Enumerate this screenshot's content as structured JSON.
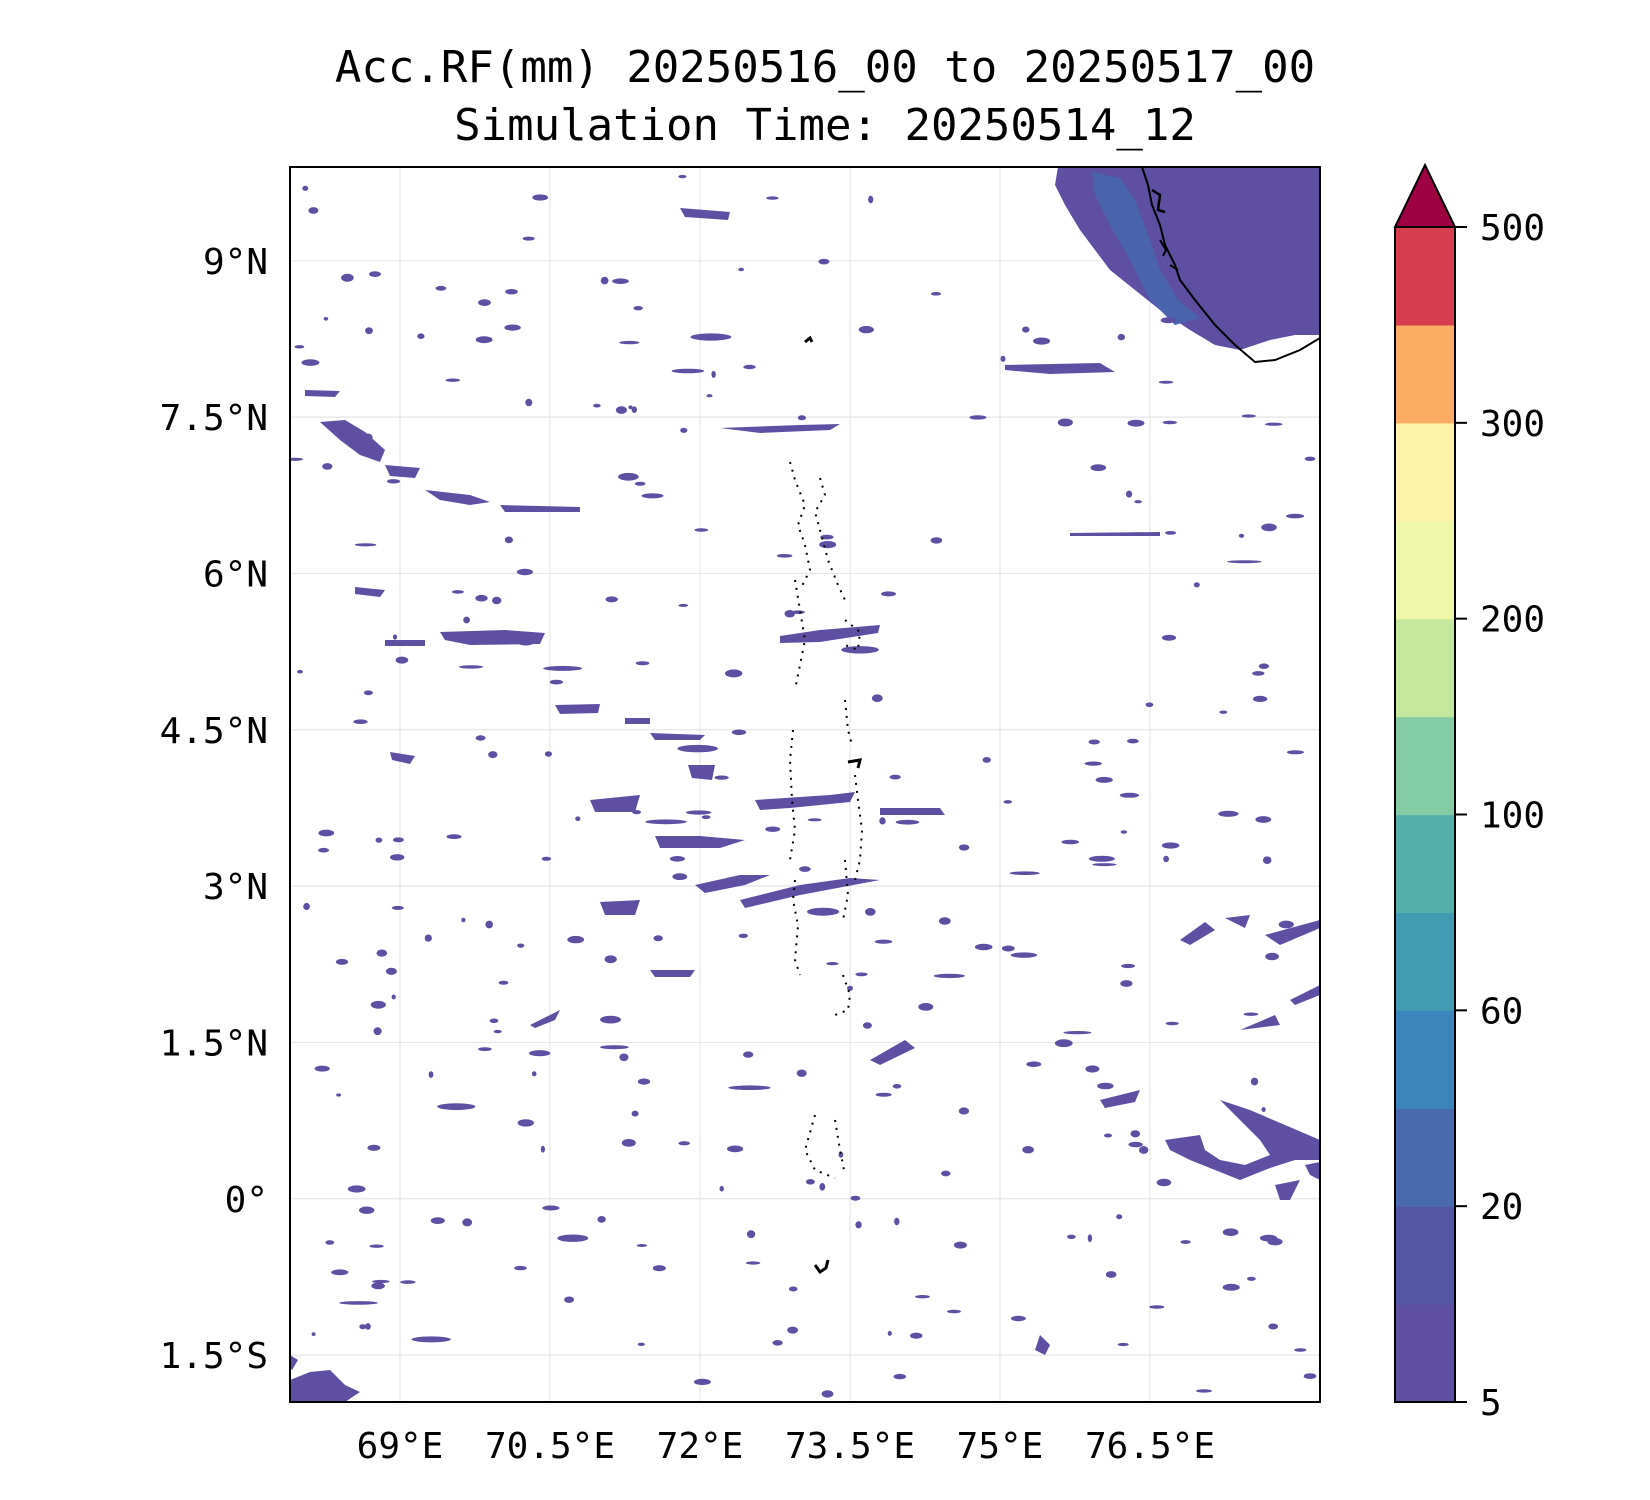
{
  "title": {
    "line1": "Acc.RF(mm) 20250516_00 to 20250517_00",
    "line2": "Simulation Time: 20250514_12"
  },
  "map": {
    "lon_range": [
      67.9,
      78.2
    ],
    "lat_range": [
      -1.95,
      9.9
    ],
    "lon_ticks": [
      {
        "value": 69.0,
        "label": "69°E"
      },
      {
        "value": 70.5,
        "label": "70.5°E"
      },
      {
        "value": 72.0,
        "label": "72°E"
      },
      {
        "value": 73.5,
        "label": "73.5°E"
      },
      {
        "value": 75.0,
        "label": "75°E"
      },
      {
        "value": 76.5,
        "label": "76.5°E"
      }
    ],
    "lat_ticks": [
      {
        "value": 9.0,
        "label": "9°N"
      },
      {
        "value": 7.5,
        "label": "7.5°N"
      },
      {
        "value": 6.0,
        "label": "6°N"
      },
      {
        "value": 4.5,
        "label": "4.5°N"
      },
      {
        "value": 3.0,
        "label": "3°N"
      },
      {
        "value": 1.5,
        "label": "1.5°N"
      },
      {
        "value": 0.0,
        "label": "0°"
      },
      {
        "value": -1.5,
        "label": "1.5°S"
      }
    ],
    "rain_color": "#5e4fa2",
    "rain_color_dark": "#4a63ad",
    "coast_color": "#000000",
    "grid": true
  },
  "colorbar": {
    "colors": [
      "#5e4fa2",
      "#5355a5",
      "#4a6ab0",
      "#3a85bb",
      "#419cb3",
      "#55b0ab",
      "#83cca4",
      "#c4e89e",
      "#eef8a8",
      "#fff2a9",
      "#fbad63",
      "#d63e4f"
    ],
    "extend_color": "#9e0142",
    "labels": [
      "5",
      "20",
      "60",
      "100",
      "200",
      "300",
      "500"
    ],
    "label_index": [
      0,
      2,
      4,
      6,
      8,
      10,
      12
    ]
  }
}
